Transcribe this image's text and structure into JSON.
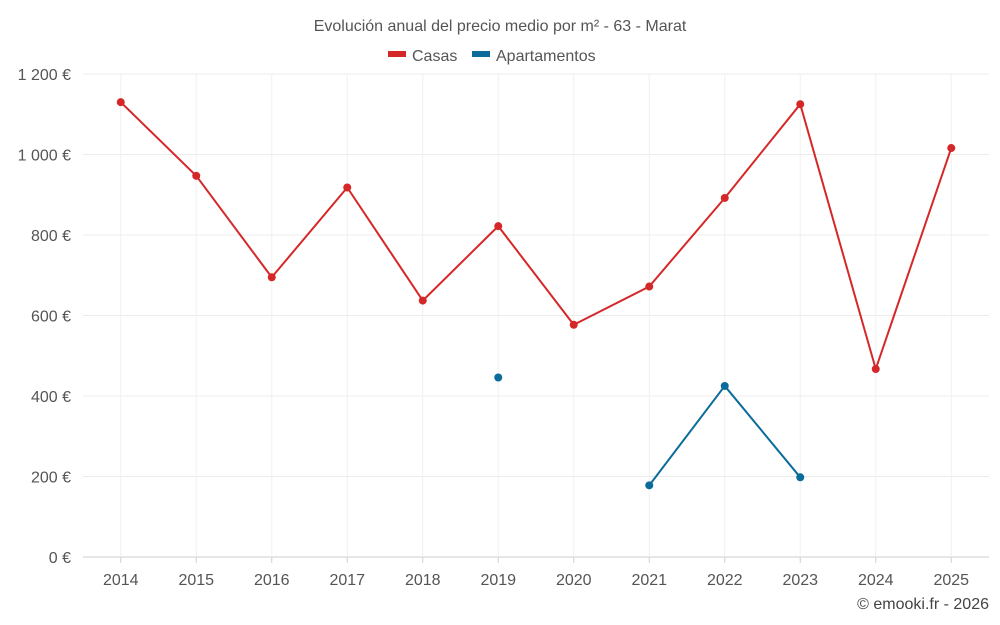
{
  "chart_data": {
    "type": "line",
    "title": "Evolución anual del precio medio por m² - 63 - Marat",
    "categories": [
      "2014",
      "2015",
      "2016",
      "2017",
      "2018",
      "2019",
      "2020",
      "2021",
      "2022",
      "2023",
      "2024",
      "2025"
    ],
    "ylim": [
      0,
      1200
    ],
    "yticks": [
      0,
      200,
      400,
      600,
      800,
      1000,
      1200
    ],
    "ytick_labels": [
      "0 €",
      "200 €",
      "400 €",
      "600 €",
      "800 €",
      "1 000 €",
      "1 200 €"
    ],
    "series": [
      {
        "name": "Casas",
        "color": "#d62728",
        "values": [
          1130,
          947,
          695,
          918,
          637,
          822,
          577,
          672,
          892,
          1125,
          467,
          1016
        ]
      },
      {
        "name": "Apartamentos",
        "color": "#0b6b9a",
        "values": [
          null,
          null,
          null,
          null,
          null,
          446,
          null,
          178,
          425,
          198,
          null,
          null
        ]
      }
    ],
    "grid": true,
    "legend": "top-center"
  },
  "credit": "© emooki.fr - 2026"
}
